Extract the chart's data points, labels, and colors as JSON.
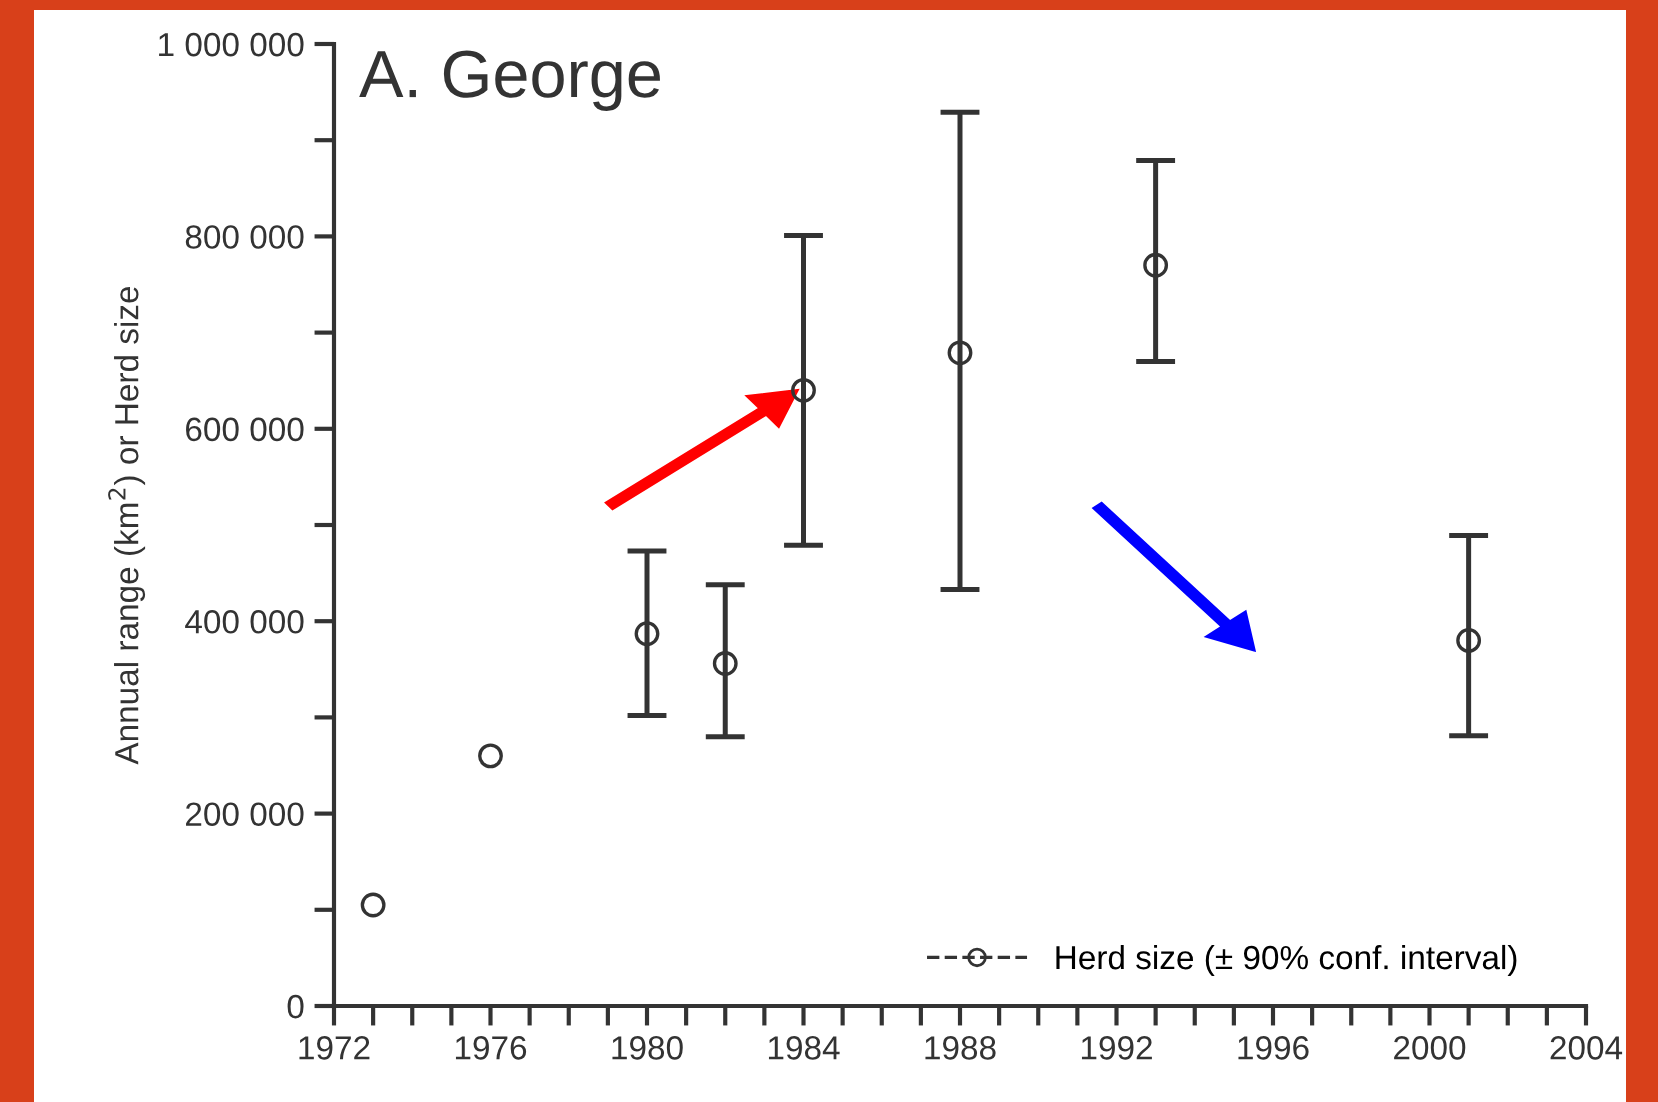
{
  "chart_data": {
    "type": "scatter",
    "title": "A. George",
    "ylabel": "Annual range (km$^{2}$) or Herd size",
    "x": [
      1973,
      1976,
      1980,
      1982,
      1984,
      1988,
      1993,
      2001
    ],
    "series": [
      {
        "name": "Herd size (± 90% conf. interval)",
        "color": "#333333",
        "values": [
          105000,
          260000,
          387000,
          356000,
          640000,
          679000,
          770000,
          380000
        ],
        "errors": [
          null,
          null,
          [
            302000,
            473000
          ],
          [
            280000,
            438000
          ],
          [
            479000,
            801000
          ],
          [
            433000,
            929000
          ],
          [
            670000,
            879000
          ],
          [
            281000,
            489000
          ]
        ]
      }
    ],
    "marker": "circle",
    "line_style": "dashed",
    "legend": "bottom right",
    "grid": false,
    "xlim": [
      1972,
      2004
    ],
    "ylim": [
      0,
      1000000
    ],
    "xticks": [
      1972,
      {
        "value": 1973,
        "label": null
      },
      {
        "value": 1974,
        "label": null
      },
      {
        "value": 1975,
        "label": null
      },
      1976,
      {
        "value": 1977,
        "label": null
      },
      {
        "value": 1978,
        "label": null
      },
      {
        "value": 1979,
        "label": null
      },
      1980,
      {
        "value": 1981,
        "label": null
      },
      {
        "value": 1982,
        "label": null
      },
      {
        "value": 1983,
        "label": null
      },
      1984,
      {
        "value": 1985,
        "label": null
      },
      {
        "value": 1986,
        "label": null
      },
      {
        "value": 1987,
        "label": null
      },
      1988,
      {
        "value": 1989,
        "label": null
      },
      {
        "value": 1990,
        "label": null
      },
      {
        "value": 1991,
        "label": null
      },
      1992,
      {
        "value": 1993,
        "label": null
      },
      {
        "value": 1994,
        "label": null
      },
      {
        "value": 1995,
        "label": null
      },
      1996,
      {
        "value": 1997,
        "label": null
      },
      {
        "value": 1998,
        "label": null
      },
      {
        "value": 1999,
        "label": null
      },
      2000,
      {
        "value": 2001,
        "label": null
      },
      {
        "value": 2002,
        "label": null
      },
      {
        "value": 2003,
        "label": null
      },
      2004
    ],
    "yticks": [
      0,
      {
        "value": 100000,
        "label": null
      },
      {
        "value": 200000,
        "label": "200 000"
      },
      {
        "value": 300000,
        "label": null
      },
      {
        "value": 400000,
        "label": "400 000"
      },
      {
        "value": 500000,
        "label": null
      },
      {
        "value": 600000,
        "label": "600 000"
      },
      {
        "value": 700000,
        "label": null
      },
      {
        "value": 800000,
        "label": "800 000"
      },
      {
        "value": 900000,
        "label": null
      },
      {
        "value": 1000000,
        "label": "1 000 000"
      }
    ]
  }
}
